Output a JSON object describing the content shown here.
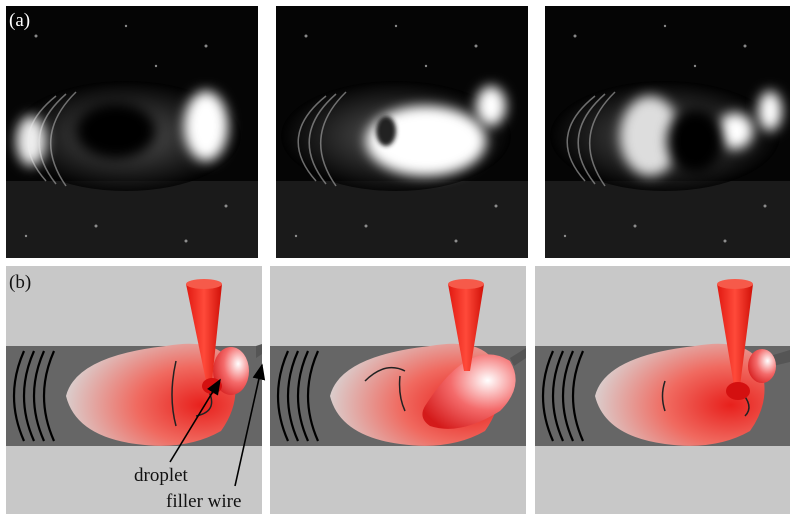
{
  "panels": [
    {
      "label": "(a)"
    },
    {
      "label": "(b)"
    }
  ],
  "annotations": [
    "droplet",
    "filler wire"
  ]
}
